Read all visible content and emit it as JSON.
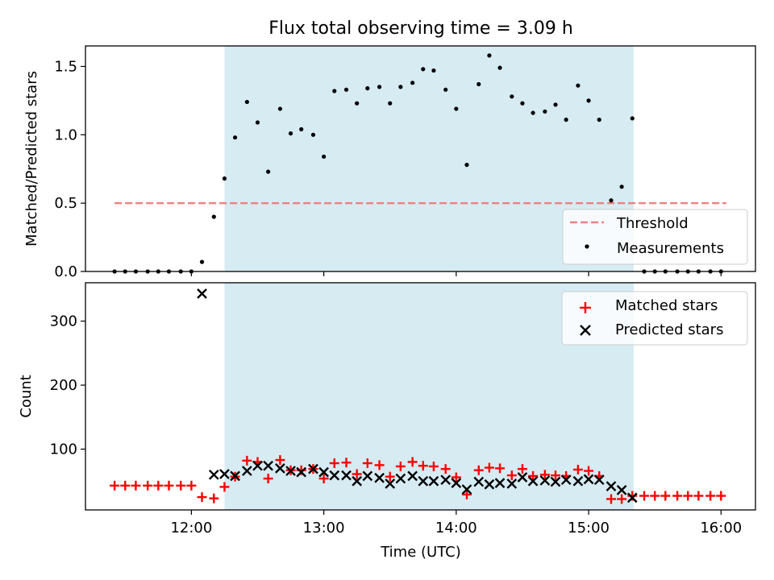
{
  "chart_data": {
    "type": "scatter",
    "title": "Flux total observing time = 3.09 h",
    "xlabel": "Time (UTC)",
    "x_ticks": [
      {
        "value": 12,
        "label": "12:00"
      },
      {
        "value": 13,
        "label": "13:00"
      },
      {
        "value": 14,
        "label": "14:00"
      },
      {
        "value": 15,
        "label": "15:00"
      },
      {
        "value": 16,
        "label": "16:00"
      }
    ],
    "xlim": [
      11.2,
      16.26
    ],
    "observing_window": {
      "start": 12.25,
      "end": 15.34,
      "color": "#add8e6"
    },
    "top_panel": {
      "ylabel": "Matched/Predicted stars",
      "ylim": [
        0,
        1.65
      ],
      "y_ticks": [
        {
          "value": 0,
          "label": "0.0"
        },
        {
          "value": 0.5,
          "label": "0.5"
        },
        {
          "value": 1.0,
          "label": "1.0"
        },
        {
          "value": 1.5,
          "label": "1.5"
        }
      ],
      "threshold": {
        "name": "Threshold",
        "value": 0.5,
        "x_start": 11.42,
        "x_end": 16.04,
        "color": "#f08080"
      },
      "measurements": {
        "name": "Measurements",
        "color": "#000000",
        "points": [
          [
            11.42,
            0
          ],
          [
            11.5,
            0
          ],
          [
            11.58,
            0
          ],
          [
            11.67,
            0
          ],
          [
            11.75,
            0
          ],
          [
            11.83,
            0
          ],
          [
            11.92,
            0
          ],
          [
            12.0,
            0
          ],
          [
            12.08,
            0.07
          ],
          [
            12.17,
            0.4
          ],
          [
            12.25,
            0.68
          ],
          [
            12.33,
            0.98
          ],
          [
            12.42,
            1.24
          ],
          [
            12.5,
            1.09
          ],
          [
            12.58,
            0.73
          ],
          [
            12.67,
            1.19
          ],
          [
            12.75,
            1.01
          ],
          [
            12.83,
            1.04
          ],
          [
            12.92,
            1.0
          ],
          [
            13.0,
            0.84
          ],
          [
            13.08,
            1.32
          ],
          [
            13.17,
            1.33
          ],
          [
            13.25,
            1.23
          ],
          [
            13.33,
            1.34
          ],
          [
            13.42,
            1.35
          ],
          [
            13.5,
            1.23
          ],
          [
            13.58,
            1.35
          ],
          [
            13.67,
            1.38
          ],
          [
            13.75,
            1.48
          ],
          [
            13.83,
            1.47
          ],
          [
            13.92,
            1.33
          ],
          [
            14.0,
            1.19
          ],
          [
            14.08,
            0.78
          ],
          [
            14.17,
            1.37
          ],
          [
            14.25,
            1.58
          ],
          [
            14.33,
            1.49
          ],
          [
            14.42,
            1.28
          ],
          [
            14.5,
            1.23
          ],
          [
            14.58,
            1.16
          ],
          [
            14.67,
            1.17
          ],
          [
            14.75,
            1.22
          ],
          [
            14.83,
            1.11
          ],
          [
            14.92,
            1.36
          ],
          [
            15.0,
            1.25
          ],
          [
            15.08,
            1.11
          ],
          [
            15.17,
            0.52
          ],
          [
            15.25,
            0.62
          ],
          [
            15.33,
            1.12
          ],
          [
            15.42,
            0
          ],
          [
            15.5,
            0
          ],
          [
            15.58,
            0
          ],
          [
            15.67,
            0
          ],
          [
            15.75,
            0
          ],
          [
            15.83,
            0
          ],
          [
            15.92,
            0
          ],
          [
            16.0,
            0
          ]
        ]
      },
      "legend_position": "lower-right"
    },
    "bottom_panel": {
      "ylabel": "Count",
      "ylim": [
        5,
        360
      ],
      "y_ticks": [
        {
          "value": 100,
          "label": "100"
        },
        {
          "value": 200,
          "label": "200"
        },
        {
          "value": 300,
          "label": "300"
        }
      ],
      "series": [
        {
          "name": "Matched stars",
          "marker": "plus",
          "color": "#ff0000",
          "points": [
            [
              11.42,
              43
            ],
            [
              11.5,
              43
            ],
            [
              11.58,
              43
            ],
            [
              11.67,
              43
            ],
            [
              11.75,
              43
            ],
            [
              11.83,
              43
            ],
            [
              11.92,
              43
            ],
            [
              12.0,
              43
            ],
            [
              12.08,
              25
            ],
            [
              12.17,
              23
            ],
            [
              12.25,
              41
            ],
            [
              12.33,
              57
            ],
            [
              12.42,
              82
            ],
            [
              12.5,
              80
            ],
            [
              12.58,
              54
            ],
            [
              12.67,
              83
            ],
            [
              12.75,
              67
            ],
            [
              12.83,
              67
            ],
            [
              12.92,
              69
            ],
            [
              13.0,
              54
            ],
            [
              13.08,
              78
            ],
            [
              13.17,
              79
            ],
            [
              13.25,
              61
            ],
            [
              13.33,
              78
            ],
            [
              13.42,
              75
            ],
            [
              13.5,
              57
            ],
            [
              13.58,
              73
            ],
            [
              13.67,
              80
            ],
            [
              13.75,
              74
            ],
            [
              13.83,
              73
            ],
            [
              13.92,
              69
            ],
            [
              14.0,
              56
            ],
            [
              14.08,
              29
            ],
            [
              14.17,
              67
            ],
            [
              14.25,
              71
            ],
            [
              14.33,
              70
            ],
            [
              14.42,
              59
            ],
            [
              14.5,
              69
            ],
            [
              14.58,
              58
            ],
            [
              14.67,
              60
            ],
            [
              14.75,
              59
            ],
            [
              14.83,
              58
            ],
            [
              14.92,
              68
            ],
            [
              15.0,
              66
            ],
            [
              15.08,
              58
            ],
            [
              15.17,
              22
            ],
            [
              15.25,
              22
            ],
            [
              15.33,
              27
            ],
            [
              15.42,
              27
            ],
            [
              15.5,
              27
            ],
            [
              15.58,
              27
            ],
            [
              15.67,
              27
            ],
            [
              15.75,
              27
            ],
            [
              15.83,
              27
            ],
            [
              15.92,
              27
            ],
            [
              16.0,
              27
            ]
          ]
        },
        {
          "name": "Predicted stars",
          "marker": "x",
          "color": "#000000",
          "points": [
            [
              12.08,
              343
            ],
            [
              12.17,
              60
            ],
            [
              12.25,
              61
            ],
            [
              12.33,
              58
            ],
            [
              12.42,
              66
            ],
            [
              12.5,
              74
            ],
            [
              12.58,
              74
            ],
            [
              12.67,
              70
            ],
            [
              12.75,
              66
            ],
            [
              12.83,
              64
            ],
            [
              12.92,
              69
            ],
            [
              13.0,
              64
            ],
            [
              13.08,
              59
            ],
            [
              13.17,
              59
            ],
            [
              13.25,
              50
            ],
            [
              13.33,
              58
            ],
            [
              13.42,
              55
            ],
            [
              13.5,
              46
            ],
            [
              13.58,
              54
            ],
            [
              13.67,
              58
            ],
            [
              13.75,
              50
            ],
            [
              13.83,
              50
            ],
            [
              13.92,
              52
            ],
            [
              14.0,
              47
            ],
            [
              14.08,
              37
            ],
            [
              14.17,
              49
            ],
            [
              14.25,
              45
            ],
            [
              14.33,
              47
            ],
            [
              14.42,
              46
            ],
            [
              14.5,
              56
            ],
            [
              14.58,
              50
            ],
            [
              14.67,
              51
            ],
            [
              14.75,
              49
            ],
            [
              14.83,
              52
            ],
            [
              14.92,
              50
            ],
            [
              15.0,
              53
            ],
            [
              15.08,
              52
            ],
            [
              15.17,
              42
            ],
            [
              15.25,
              36
            ],
            [
              15.33,
              24
            ]
          ]
        }
      ],
      "legend_position": "upper-right"
    }
  }
}
